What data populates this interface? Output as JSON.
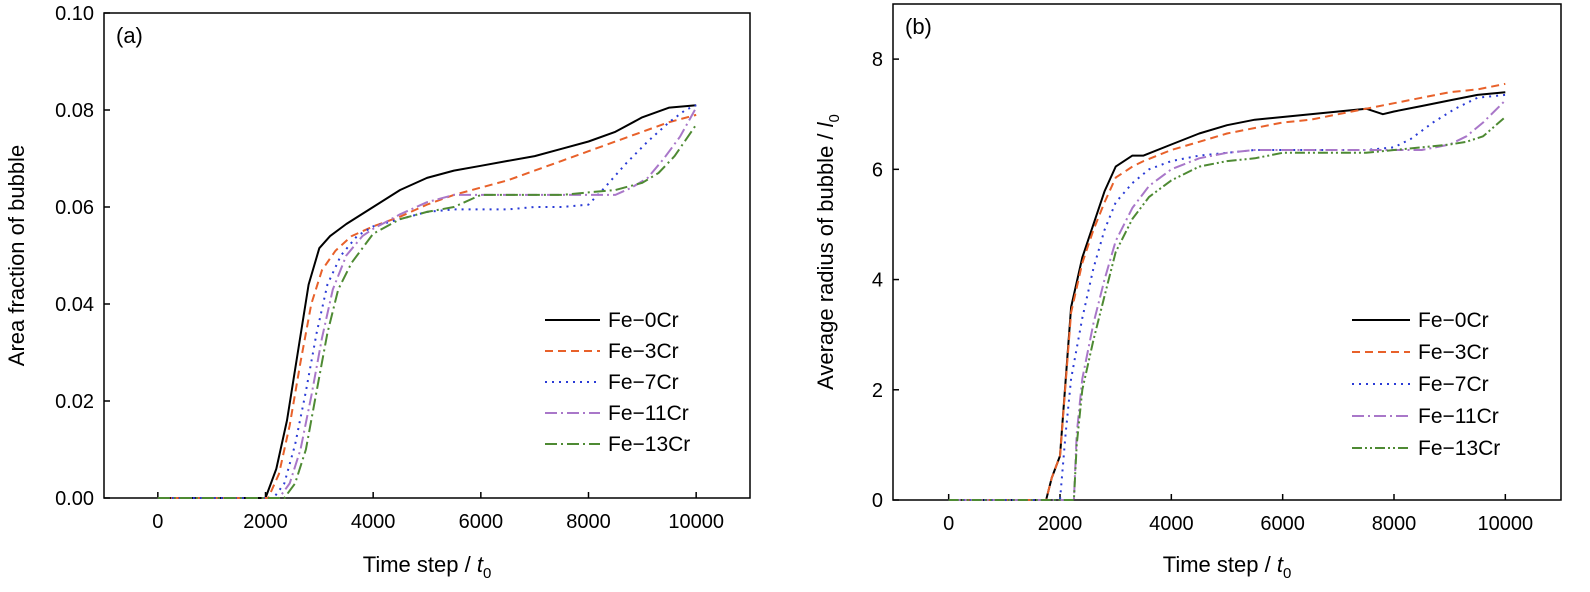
{
  "chart_data": [
    {
      "type": "line",
      "panel_label": "(a)",
      "xlabel_main": "Time step / ",
      "xlabel_sym": "t",
      "xlabel_sub": "0",
      "ylabel_main": "Area fraction of bubble",
      "ylabel_sym": "",
      "ylabel_sub": "",
      "xlim": [
        -1000,
        11000
      ],
      "ylim": [
        0,
        0.1
      ],
      "xticks": [
        0,
        2000,
        4000,
        6000,
        8000,
        10000
      ],
      "yticks": [
        0.0,
        0.02,
        0.04,
        0.06,
        0.08,
        0.1
      ],
      "xtick_labels": [
        "0",
        "2000",
        "4000",
        "6000",
        "8000",
        "10000"
      ],
      "ytick_labels": [
        "0.00",
        "0.02",
        "0.04",
        "0.06",
        "0.08",
        "0.10"
      ],
      "grid": false,
      "legend_position": "lower-right",
      "series": [
        {
          "name": "Fe−0Cr",
          "color": "#000000",
          "dash": "",
          "x": [
            0,
            2000,
            2200,
            2400,
            2600,
            2800,
            3000,
            3200,
            3500,
            4000,
            4500,
            5000,
            5500,
            6000,
            6500,
            7000,
            7500,
            8000,
            8500,
            9000,
            9500,
            10000
          ],
          "y": [
            0,
            0,
            0.006,
            0.016,
            0.03,
            0.044,
            0.0515,
            0.054,
            0.0565,
            0.06,
            0.0635,
            0.066,
            0.0675,
            0.0685,
            0.0695,
            0.0705,
            0.072,
            0.0735,
            0.0755,
            0.0785,
            0.0805,
            0.081
          ]
        },
        {
          "name": "Fe−3Cr",
          "color": "#e8612a",
          "dash": "8,5",
          "x": [
            0,
            2050,
            2250,
            2450,
            2650,
            2850,
            3050,
            3300,
            3600,
            4000,
            4500,
            5000,
            5500,
            6000,
            6500,
            7000,
            7500,
            8000,
            8500,
            9000,
            9500,
            10000
          ],
          "y": [
            0,
            0,
            0.005,
            0.015,
            0.028,
            0.04,
            0.047,
            0.051,
            0.054,
            0.056,
            0.058,
            0.0605,
            0.0625,
            0.064,
            0.0655,
            0.0675,
            0.0695,
            0.0715,
            0.0735,
            0.0755,
            0.0775,
            0.079
          ]
        },
        {
          "name": "Fe−7Cr",
          "color": "#2a3bd6",
          "dash": "2,5",
          "x": [
            0,
            2150,
            2350,
            2550,
            2750,
            2950,
            3150,
            3400,
            3700,
            4000,
            4500,
            5000,
            5500,
            6000,
            6500,
            7000,
            7500,
            8000,
            8300,
            8700,
            9100,
            9500,
            9800,
            10000
          ],
          "y": [
            0,
            0,
            0.003,
            0.011,
            0.022,
            0.034,
            0.044,
            0.05,
            0.054,
            0.056,
            0.0575,
            0.059,
            0.0595,
            0.0595,
            0.0595,
            0.06,
            0.06,
            0.0605,
            0.064,
            0.069,
            0.0735,
            0.0775,
            0.08,
            0.081
          ]
        },
        {
          "name": "Fe−11Cr",
          "color": "#a977c9",
          "dash": "12,4,2,4",
          "x": [
            0,
            2250,
            2450,
            2650,
            2850,
            3050,
            3250,
            3500,
            3800,
            4000,
            4500,
            5000,
            5500,
            6000,
            6500,
            7000,
            7500,
            8000,
            8500,
            8800,
            9100,
            9400,
            9700,
            10000
          ],
          "y": [
            0,
            0,
            0.003,
            0.01,
            0.021,
            0.033,
            0.043,
            0.05,
            0.054,
            0.0555,
            0.0585,
            0.061,
            0.0625,
            0.0625,
            0.0625,
            0.0625,
            0.0625,
            0.0625,
            0.0625,
            0.064,
            0.066,
            0.07,
            0.0745,
            0.0805
          ]
        },
        {
          "name": "Fe−13Cr",
          "color": "#4e8a33",
          "dash": "12,4,2,4",
          "x": [
            0,
            2350,
            2550,
            2750,
            2950,
            3150,
            3350,
            3600,
            4000,
            4500,
            5000,
            5500,
            6000,
            6500,
            7000,
            7500,
            8000,
            8500,
            9000,
            9300,
            9600,
            10000
          ],
          "y": [
            0,
            0,
            0.003,
            0.01,
            0.022,
            0.034,
            0.043,
            0.0485,
            0.0545,
            0.0575,
            0.059,
            0.06,
            0.0625,
            0.0625,
            0.0625,
            0.0625,
            0.063,
            0.0635,
            0.065,
            0.067,
            0.0705,
            0.077
          ]
        }
      ]
    },
    {
      "type": "line",
      "panel_label": "(b)",
      "xlabel_main": "Time step / ",
      "xlabel_sym": "t",
      "xlabel_sub": "0",
      "ylabel_main": "Average radius of bubble / ",
      "ylabel_sym": "l",
      "ylabel_sub": "0",
      "xlim": [
        -1000,
        11000
      ],
      "ylim": [
        0,
        9
      ],
      "xticks": [
        0,
        2000,
        4000,
        6000,
        8000,
        10000
      ],
      "yticks": [
        0,
        2,
        4,
        6,
        8
      ],
      "xtick_labels": [
        "0",
        "2000",
        "4000",
        "6000",
        "8000",
        "10000"
      ],
      "ytick_labels": [
        "0",
        "2",
        "4",
        "6",
        "8"
      ],
      "grid": false,
      "legend_position": "lower-right",
      "series": [
        {
          "name": "Fe−0Cr",
          "color": "#000000",
          "dash": "",
          "x": [
            0,
            1750,
            1850,
            2000,
            2200,
            2400,
            2600,
            2800,
            3000,
            3300,
            3500,
            4000,
            4500,
            5000,
            5500,
            6000,
            6500,
            7000,
            7500,
            7800,
            8000,
            8500,
            9000,
            9500,
            10000
          ],
          "y": [
            0,
            0,
            0.4,
            0.8,
            3.5,
            4.4,
            5.0,
            5.6,
            6.05,
            6.25,
            6.25,
            6.45,
            6.65,
            6.8,
            6.9,
            6.95,
            7.0,
            7.05,
            7.1,
            7.0,
            7.05,
            7.15,
            7.25,
            7.35,
            7.4
          ]
        },
        {
          "name": "Fe−3Cr",
          "color": "#e8612a",
          "dash": "8,5",
          "x": [
            0,
            1750,
            1850,
            2000,
            2200,
            2400,
            2600,
            2800,
            3000,
            3300,
            3500,
            4000,
            4500,
            5000,
            5500,
            6000,
            6500,
            7000,
            7500,
            8000,
            8500,
            9000,
            9500,
            10000
          ],
          "y": [
            0,
            0,
            0.4,
            0.8,
            3.4,
            4.3,
            4.9,
            5.4,
            5.85,
            6.05,
            6.15,
            6.35,
            6.5,
            6.65,
            6.75,
            6.85,
            6.9,
            7.0,
            7.1,
            7.2,
            7.3,
            7.4,
            7.45,
            7.55
          ]
        },
        {
          "name": "Fe−7Cr",
          "color": "#2a3bd6",
          "dash": "2,5",
          "x": [
            0,
            2000,
            2100,
            2200,
            2400,
            2600,
            2800,
            3000,
            3300,
            3600,
            4000,
            4500,
            5000,
            5500,
            6000,
            6500,
            7000,
            7500,
            8000,
            8300,
            8700,
            9100,
            9500,
            10000
          ],
          "y": [
            0,
            0,
            1.2,
            2.2,
            3.3,
            4.2,
            4.9,
            5.4,
            5.75,
            6.0,
            6.15,
            6.25,
            6.3,
            6.35,
            6.35,
            6.35,
            6.35,
            6.35,
            6.4,
            6.55,
            6.85,
            7.1,
            7.3,
            7.35
          ]
        },
        {
          "name": "Fe−11Cr",
          "color": "#a977c9",
          "dash": "12,4,2,4",
          "x": [
            0,
            2250,
            2300,
            2400,
            2600,
            2800,
            3000,
            3300,
            3600,
            4000,
            4500,
            5000,
            5500,
            6000,
            6500,
            7000,
            7500,
            8000,
            8500,
            9000,
            9300,
            9600,
            10000
          ],
          "y": [
            0,
            0,
            1.2,
            2.2,
            3.2,
            4.0,
            4.7,
            5.3,
            5.7,
            6.0,
            6.2,
            6.3,
            6.35,
            6.35,
            6.35,
            6.35,
            6.35,
            6.35,
            6.35,
            6.45,
            6.6,
            6.85,
            7.25
          ]
        },
        {
          "name": "Fe−13Cr",
          "color": "#4e8a33",
          "dash": "10,3,2,3,2,3",
          "x": [
            0,
            2250,
            2300,
            2400,
            2600,
            2800,
            3000,
            3300,
            3600,
            4000,
            4500,
            5000,
            5500,
            6000,
            6500,
            7000,
            7500,
            8000,
            8500,
            9000,
            9300,
            9600,
            10000
          ],
          "y": [
            0,
            0,
            1.0,
            2.0,
            2.9,
            3.7,
            4.5,
            5.1,
            5.5,
            5.8,
            6.05,
            6.15,
            6.2,
            6.3,
            6.3,
            6.3,
            6.3,
            6.35,
            6.4,
            6.45,
            6.5,
            6.6,
            6.95
          ]
        }
      ]
    }
  ]
}
